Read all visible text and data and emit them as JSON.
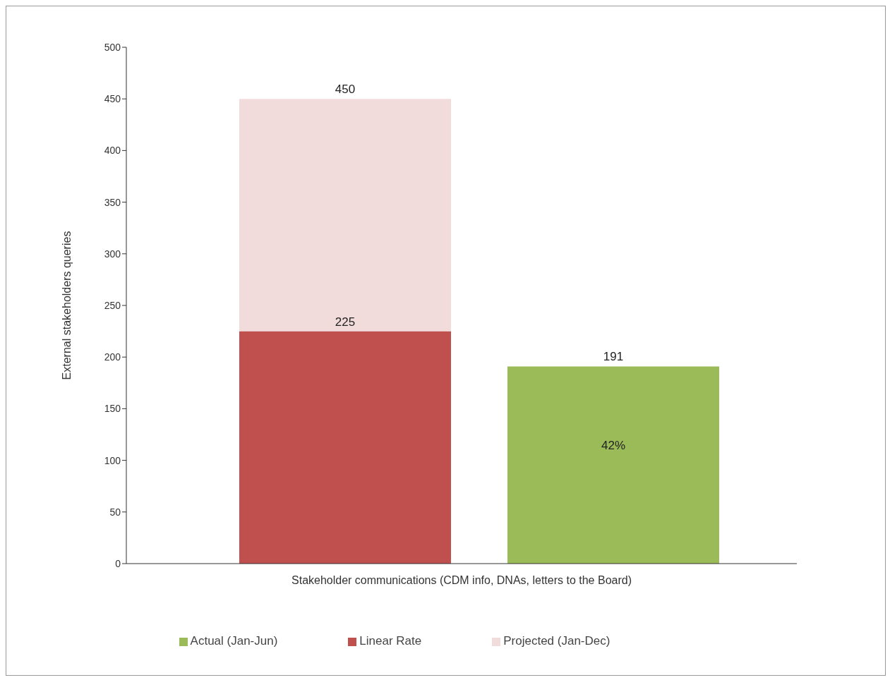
{
  "chart_data": {
    "type": "bar",
    "stacked": true,
    "totals": [
      "450",
      null
    ],
    "xlabel": "Stakeholder communications (CDM info, DNAs, letters to the Board)",
    "ylabel": "External stakeholders queries",
    "categories": [
      null,
      null
    ],
    "series": [
      {
        "name": "Linear Rate",
        "color": "#c0504d",
        "values": [
          225,
          null
        ],
        "value_labels": [
          "225",
          null
        ]
      },
      {
        "name": "Projected (Jan-Dec)",
        "color": "#f2dcdb",
        "values": [
          225,
          null
        ]
      },
      {
        "name": "Actual (Jan-Jun)",
        "color": "#9bbb59",
        "values": [
          null,
          191
        ],
        "value_labels": [
          null,
          "191"
        ]
      }
    ],
    "annotations": [
      "42%"
    ],
    "ylim": [
      0,
      500
    ],
    "yticks": [
      0,
      50,
      100,
      150,
      200,
      250,
      300,
      350,
      400,
      450,
      500
    ],
    "grid": false,
    "legend": "bottom"
  }
}
